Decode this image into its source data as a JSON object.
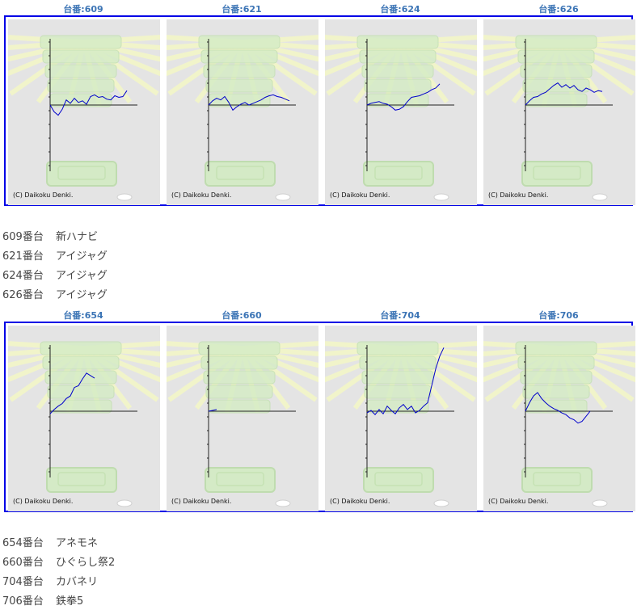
{
  "copyright": "(C) Daikoku Denki.",
  "groups": [
    {
      "machines": [
        {
          "title": "台番:609"
        },
        {
          "title": "台番:621"
        },
        {
          "title": "台番:624"
        },
        {
          "title": "台番:626"
        }
      ],
      "list": [
        {
          "num": "609番台",
          "name": "新ハナビ"
        },
        {
          "num": "621番台",
          "name": "アイジャグ"
        },
        {
          "num": "624番台",
          "name": "アイジャグ"
        },
        {
          "num": "626番台",
          "name": "アイジャグ"
        }
      ]
    },
    {
      "machines": [
        {
          "title": "台番:654"
        },
        {
          "title": "台番:660"
        },
        {
          "title": "台番:704"
        },
        {
          "title": "台番:706"
        }
      ],
      "list": [
        {
          "num": "654番台",
          "name": "アネモネ"
        },
        {
          "num": "660番台",
          "name": "ひぐらし祭2"
        },
        {
          "num": "704番台",
          "name": "カバネリ"
        },
        {
          "num": "706番台",
          "name": "鉄拳5"
        }
      ]
    }
  ],
  "chart_data": [
    {
      "type": "line",
      "title": "台番:609",
      "series_color": "#0000cc",
      "x": [
        0,
        0.5,
        1,
        1.5,
        2,
        2.5,
        3,
        3.5,
        4,
        4.5,
        5,
        5.5,
        6,
        6.5,
        7,
        7.5,
        8,
        8.5,
        9,
        9.5
      ],
      "y": [
        0,
        -0.8,
        -1.2,
        -0.5,
        0.6,
        0.2,
        0.8,
        0.3,
        0.5,
        0.1,
        1.0,
        1.2,
        0.9,
        1.0,
        0.7,
        0.6,
        1.1,
        0.9,
        1.0,
        1.7
      ]
    },
    {
      "type": "line",
      "title": "台番:621",
      "series_color": "#0000cc",
      "x": [
        0,
        0.5,
        1,
        1.5,
        2,
        2.5,
        3,
        3.5,
        4,
        4.5,
        5,
        5.5,
        6,
        6.5,
        7,
        7.5,
        8,
        8.5,
        9,
        9.5,
        10
      ],
      "y": [
        0,
        0.5,
        0.8,
        0.6,
        1.0,
        0.3,
        -0.6,
        -0.2,
        0.1,
        0.3,
        0.0,
        0.2,
        0.4,
        0.6,
        0.9,
        1.1,
        1.2,
        1.0,
        0.9,
        0.7,
        0.5
      ]
    },
    {
      "type": "line",
      "title": "台番:624",
      "series_color": "#0000cc",
      "x": [
        0,
        0.5,
        1,
        1.5,
        2,
        2.5,
        3,
        3.5,
        4,
        4.5,
        5,
        5.5,
        6,
        6.5,
        7,
        7.5,
        8,
        8.5,
        9
      ],
      "y": [
        0,
        0.2,
        0.3,
        0.4,
        0.2,
        0.1,
        -0.2,
        -0.6,
        -0.5,
        -0.2,
        0.4,
        0.9,
        1.0,
        1.1,
        1.3,
        1.5,
        1.8,
        2.0,
        2.5
      ]
    },
    {
      "type": "line",
      "title": "台番:626",
      "series_color": "#0000cc",
      "x": [
        0,
        0.5,
        1,
        1.5,
        2,
        2.5,
        3,
        3.5,
        4,
        4.5,
        5,
        5.5,
        6,
        6.5,
        7,
        7.5,
        8,
        8.5,
        9,
        9.5
      ],
      "y": [
        0,
        0.5,
        0.9,
        1.0,
        1.3,
        1.5,
        1.9,
        2.3,
        2.6,
        2.1,
        2.4,
        2.0,
        2.3,
        1.8,
        1.6,
        2.0,
        1.8,
        1.5,
        1.7,
        1.6
      ]
    },
    {
      "type": "line",
      "title": "台番:654",
      "series_color": "#0000cc",
      "x": [
        0,
        0.5,
        1,
        1.5,
        2,
        2.5,
        3,
        3.5,
        4,
        4.5,
        5,
        5.5
      ],
      "y": [
        -0.3,
        0.2,
        0.6,
        0.9,
        1.5,
        1.8,
        2.8,
        3.0,
        3.8,
        4.5,
        4.2,
        3.9
      ]
    },
    {
      "type": "line",
      "title": "台番:660",
      "series_color": "#0000cc",
      "x": [
        0,
        0.5,
        1
      ],
      "y": [
        0,
        0.1,
        0.2
      ]
    },
    {
      "type": "line",
      "title": "台番:704",
      "series_color": "#0000cc",
      "x": [
        0,
        0.5,
        1,
        1.5,
        2,
        2.5,
        3,
        3.5,
        4,
        4.5,
        5,
        5.5,
        6,
        6.5,
        7,
        7.5,
        8,
        8.5,
        9,
        9.5
      ],
      "y": [
        -0.2,
        0.1,
        -0.4,
        0.2,
        -0.3,
        0.6,
        0.1,
        -0.3,
        0.4,
        0.8,
        0.2,
        0.6,
        -0.2,
        0.1,
        0.6,
        1.0,
        3.0,
        5.0,
        6.5,
        7.5
      ]
    },
    {
      "type": "line",
      "title": "台番:706",
      "series_color": "#0000cc",
      "x": [
        0,
        0.5,
        1,
        1.5,
        2,
        2.5,
        3,
        3.5,
        4,
        4.5,
        5,
        5.5,
        6,
        6.5,
        7,
        7.5,
        8
      ],
      "y": [
        0,
        1.0,
        1.8,
        2.2,
        1.5,
        1.0,
        0.6,
        0.3,
        0.1,
        -0.2,
        -0.4,
        -0.8,
        -1.0,
        -1.4,
        -1.2,
        -0.6,
        0.0
      ]
    }
  ]
}
